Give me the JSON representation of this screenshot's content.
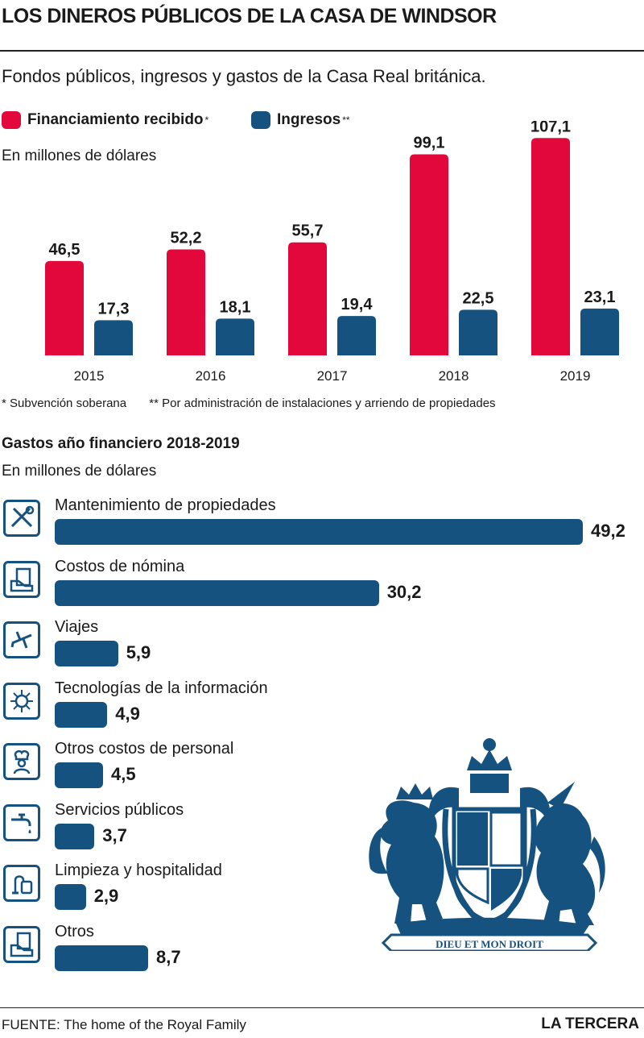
{
  "title": "LOS DINEROS PÚBLICOS DE LA CASA DE WINDSOR",
  "subtitle": "Fondos públicos, ingresos y gastos de la Casa Real británica.",
  "colors": {
    "financiamiento": "#e3083b",
    "ingresos": "#16527f",
    "text": "#1a1a1a"
  },
  "chart_data": [
    {
      "type": "bar",
      "unit": "En millones de dólares",
      "categories": [
        "2015",
        "2016",
        "2017",
        "2018",
        "2019"
      ],
      "series": [
        {
          "name": "Financiamiento recibido",
          "marker": "*",
          "color": "#e3083b",
          "values": [
            46.5,
            52.2,
            55.7,
            99.1,
            107.1
          ],
          "labels": [
            "46,5",
            "52,2",
            "55,7",
            "99,1",
            "107,1"
          ]
        },
        {
          "name": "Ingresos",
          "marker": "**",
          "color": "#16527f",
          "values": [
            17.3,
            18.1,
            19.4,
            22.5,
            23.1
          ],
          "labels": [
            "17,3",
            "18,1",
            "19,4",
            "22,5",
            "23,1"
          ]
        }
      ],
      "ylim": [
        0,
        110
      ],
      "grid": false,
      "legend": "top-left",
      "footnotes": [
        "* Subvención soberana",
        "** Por administración de instalaciones y arriendo de propiedades"
      ]
    },
    {
      "type": "bar",
      "orientation": "horizontal",
      "title": "Gastos año financiero 2018-2019",
      "unit": "En millones de dólares",
      "categories": [
        "Mantenimiento de propiedades",
        "Costos de nómina",
        "Viajes",
        "Tecnologías de la información",
        "Otros costos de personal",
        "Servicios públicos",
        "Limpieza y hospitalidad",
        "Otros"
      ],
      "values": [
        49.2,
        30.2,
        5.9,
        4.9,
        4.5,
        3.7,
        2.9,
        8.7
      ],
      "labels": [
        "49,2",
        "30,2",
        "5,9",
        "4,9",
        "4,5",
        "3,7",
        "2,9",
        "8,7"
      ],
      "icons": [
        "tools-icon",
        "payroll-icon",
        "airplane-icon",
        "network-globe-icon",
        "chef-icon",
        "faucet-icon",
        "cleaning-icon",
        "money-hand-icon"
      ],
      "color": "#16527f"
    }
  ],
  "crest_motto": "DIEU ET MON DROIT",
  "source": "FUENTE: The home of the Royal Family",
  "brand": "LA TERCERA"
}
